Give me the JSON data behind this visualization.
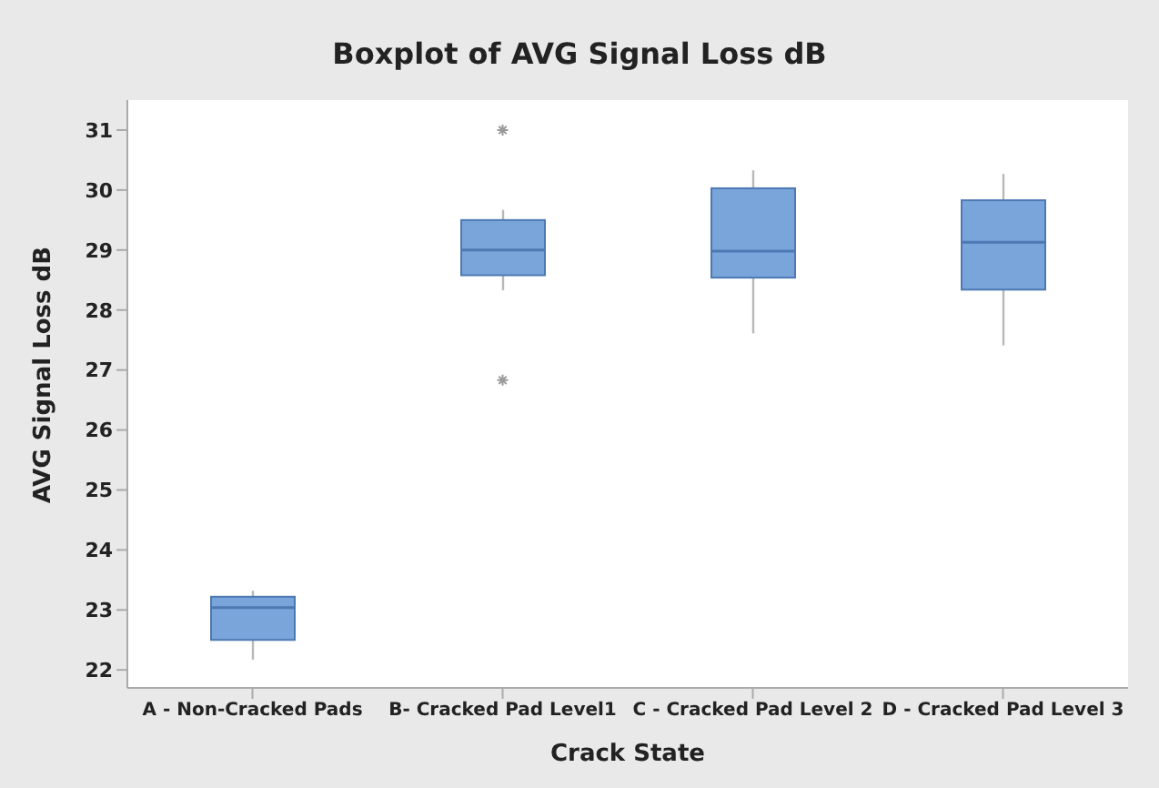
{
  "chart_data": {
    "type": "box",
    "title": "Boxplot of AVG Signal Loss dB",
    "xlabel": "Crack State",
    "ylabel": "AVG Signal Loss dB",
    "categories": [
      "A - Non-Cracked Pads",
      "B- Cracked Pad Level1",
      "C - Cracked Pad Level 2",
      "D - Cracked Pad Level 3"
    ],
    "color": "#7aa5da",
    "boxes": [
      {
        "low": 22.17,
        "q1": 22.5,
        "median": 23.04,
        "q3": 23.22,
        "high": 23.32
      },
      {
        "low": 28.33,
        "q1": 28.58,
        "median": 29.0,
        "q3": 29.5,
        "high": 29.67,
        "outliers": [
          31.0,
          26.83
        ]
      },
      {
        "low": 27.61,
        "q1": 28.54,
        "median": 28.98,
        "q3": 30.03,
        "high": 30.33
      },
      {
        "low": 27.41,
        "q1": 28.34,
        "median": 29.13,
        "q3": 29.83,
        "high": 30.27
      }
    ],
    "ylim": [
      21.7,
      31.5
    ],
    "yticks": [
      22,
      23,
      24,
      25,
      26,
      27,
      28,
      29,
      30,
      31
    ],
    "grid": false,
    "legend": false
  }
}
